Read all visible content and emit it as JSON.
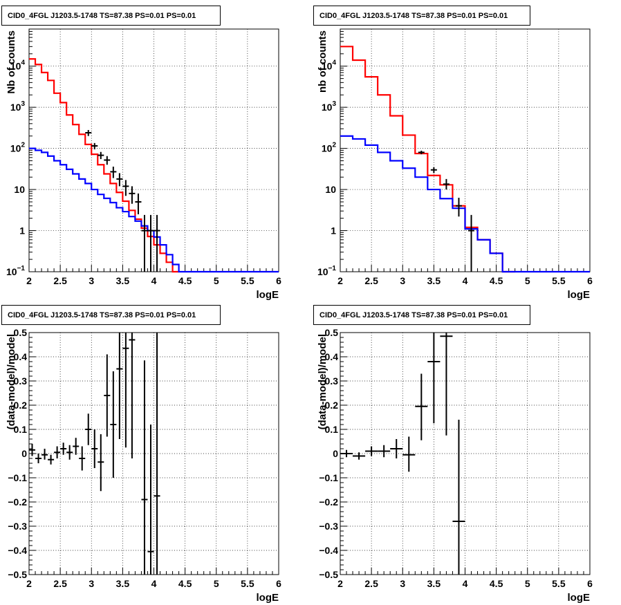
{
  "chart_data": [
    {
      "type": "line",
      "title": "CID0_4FGL J1203.5-1748 TS=87.38 PS=0.01 PS=0.01",
      "xlabel": "logE",
      "ylabel": "Nb of counts",
      "xlim": [
        2,
        6
      ],
      "ylim": [
        0.1,
        80000
      ],
      "yscale": "log",
      "grid": true,
      "x_ticks": [
        "2",
        "2.5",
        "3",
        "3.5",
        "4",
        "4.5",
        "5",
        "5.5",
        "6"
      ],
      "y_ticks": [
        {
          "value": 0.1,
          "base": "10",
          "exp": "−1"
        },
        {
          "value": 1,
          "label": "1"
        },
        {
          "value": 10,
          "label": "10"
        },
        {
          "value": 100,
          "base": "10",
          "exp": "2"
        },
        {
          "value": 1000,
          "base": "10",
          "exp": "3"
        },
        {
          "value": 10000,
          "base": "10",
          "exp": "4"
        }
      ],
      "series": [
        {
          "color": "#ff0000",
          "style": "step",
          "bin_width": 0.1,
          "x_edges_start": 2.0,
          "values": [
            15000,
            11000,
            7000,
            4500,
            2200,
            1300,
            650,
            380,
            220,
            125,
            72,
            40,
            24,
            14,
            8.5,
            5.2,
            3.1,
            1.9,
            1.15,
            0.72,
            0.45,
            0.28,
            0.17,
            0.1
          ]
        },
        {
          "color": "#0000ff",
          "style": "step",
          "bin_width": 0.1,
          "x_edges_start": 2.0,
          "values": [
            100,
            90,
            80,
            65,
            50,
            40,
            31,
            24,
            18,
            14,
            10,
            7.6,
            6.1,
            4.8,
            3.6,
            2.9,
            2.2,
            1.7,
            1.3,
            1.0,
            0.7,
            0.45,
            0.26,
            0.15,
            0.1,
            0.1,
            0.1,
            0.1,
            0.1,
            0.1,
            0.1,
            0.1,
            0.1,
            0.1,
            0.1,
            0.1,
            0.1,
            0.1,
            0.1,
            0.1
          ]
        }
      ],
      "points": [
        {
          "x": 2.95,
          "y": 240,
          "lo": 200,
          "hi": 280
        },
        {
          "x": 3.05,
          "y": 115,
          "lo": 95,
          "hi": 135
        },
        {
          "x": 3.15,
          "y": 68,
          "lo": 55,
          "hi": 82
        },
        {
          "x": 3.25,
          "y": 52,
          "lo": 40,
          "hi": 65
        },
        {
          "x": 3.35,
          "y": 27,
          "lo": 19,
          "hi": 36
        },
        {
          "x": 3.45,
          "y": 18,
          "lo": 12,
          "hi": 25
        },
        {
          "x": 3.55,
          "y": 12,
          "lo": 7,
          "hi": 17
        },
        {
          "x": 3.65,
          "y": 8,
          "lo": 4.5,
          "hi": 12
        },
        {
          "x": 3.75,
          "y": 5,
          "lo": 2.5,
          "hi": 8
        },
        {
          "x": 3.85,
          "y": 1,
          "lo": 0.1,
          "hi": 2.4
        },
        {
          "x": 3.95,
          "y": 1,
          "lo": 0.1,
          "hi": 2.4
        },
        {
          "x": 4.05,
          "y": 1,
          "lo": 0.1,
          "hi": 2.4
        }
      ]
    },
    {
      "type": "line",
      "title": "CID0_4FGL J1203.5-1748 TS=87.38 PS=0.01 PS=0.01",
      "xlabel": "logE",
      "ylabel": "nb of counts",
      "xlim": [
        2,
        6
      ],
      "ylim": [
        0.1,
        80000
      ],
      "yscale": "log",
      "grid": true,
      "x_ticks": [
        "2",
        "2.5",
        "3",
        "3.5",
        "4",
        "4.5",
        "5",
        "5.5",
        "6"
      ],
      "y_ticks": [
        {
          "value": 0.1,
          "base": "10",
          "exp": "−1"
        },
        {
          "value": 1,
          "label": "1"
        },
        {
          "value": 10,
          "label": "10"
        },
        {
          "value": 100,
          "base": "10",
          "exp": "2"
        },
        {
          "value": 1000,
          "base": "10",
          "exp": "3"
        },
        {
          "value": 10000,
          "base": "10",
          "exp": "4"
        }
      ],
      "series": [
        {
          "color": "#ff0000",
          "style": "step",
          "bin_width": 0.2,
          "x_edges_start": 2.0,
          "values": [
            30000,
            14000,
            5500,
            2000,
            620,
            210,
            75,
            22,
            13,
            4,
            1.2,
            0.6,
            0.28,
            0.1
          ]
        },
        {
          "color": "#0000ff",
          "style": "step",
          "bin_width": 0.2,
          "x_edges_start": 2.0,
          "values": [
            200,
            170,
            120,
            80,
            50,
            33,
            20,
            10,
            6,
            3.5,
            1.1,
            0.6,
            0.28,
            0.1,
            0.1,
            0.1,
            0.1,
            0.1,
            0.1,
            0.1
          ]
        }
      ],
      "points": [
        {
          "x": 3.3,
          "y": 80,
          "lo": 72,
          "hi": 88
        },
        {
          "x": 3.5,
          "y": 30,
          "lo": 25,
          "hi": 35
        },
        {
          "x": 3.7,
          "y": 13.5,
          "lo": 10,
          "hi": 18
        },
        {
          "x": 3.9,
          "y": 4,
          "lo": 2.2,
          "hi": 6.3
        },
        {
          "x": 4.1,
          "y": 1,
          "lo": 0.1,
          "hi": 2.4
        }
      ]
    },
    {
      "type": "scatter",
      "title": "CID0_4FGL J1203.5-1748 TS=87.38 PS=0.01 PS=0.01",
      "xlabel": "logE",
      "ylabel": "(data-model)/model",
      "xlim": [
        2,
        6
      ],
      "ylim": [
        -0.5,
        0.5
      ],
      "grid": true,
      "x_ticks": [
        "2",
        "2.5",
        "3",
        "3.5",
        "4",
        "4.5",
        "5",
        "5.5",
        "6"
      ],
      "y_ticks": [
        "−0.5",
        "−0.4",
        "−0.3",
        "−0.2",
        "−0.1",
        "0",
        "0.1",
        "0.2",
        "0.3",
        "0.4",
        "0.5"
      ],
      "xerr": 0.05,
      "points": [
        {
          "x": 2.05,
          "y": 0.015,
          "lo": -0.01,
          "hi": 0.04
        },
        {
          "x": 2.15,
          "y": -0.02,
          "lo": -0.04,
          "hi": 0.0
        },
        {
          "x": 2.25,
          "y": -0.005,
          "lo": -0.025,
          "hi": 0.02
        },
        {
          "x": 2.35,
          "y": -0.025,
          "lo": -0.045,
          "hi": -0.005
        },
        {
          "x": 2.45,
          "y": 0.005,
          "lo": -0.02,
          "hi": 0.03
        },
        {
          "x": 2.55,
          "y": 0.02,
          "lo": -0.005,
          "hi": 0.045
        },
        {
          "x": 2.65,
          "y": 0.005,
          "lo": -0.025,
          "hi": 0.035
        },
        {
          "x": 2.75,
          "y": 0.03,
          "lo": -0.005,
          "hi": 0.065
        },
        {
          "x": 2.85,
          "y": -0.02,
          "lo": -0.07,
          "hi": 0.03
        },
        {
          "x": 2.95,
          "y": 0.1,
          "lo": 0.035,
          "hi": 0.165
        },
        {
          "x": 3.05,
          "y": 0.02,
          "lo": -0.06,
          "hi": 0.1
        },
        {
          "x": 3.15,
          "y": -0.035,
          "lo": -0.155,
          "hi": 0.08
        },
        {
          "x": 3.25,
          "y": 0.24,
          "lo": 0.07,
          "hi": 0.41
        },
        {
          "x": 3.35,
          "y": 0.12,
          "lo": -0.1,
          "hi": 0.34
        },
        {
          "x": 3.45,
          "y": 0.35,
          "lo": 0.06,
          "hi": 0.5
        },
        {
          "x": 3.55,
          "y": 0.435,
          "lo": 0.025,
          "hi": 0.5
        },
        {
          "x": 3.65,
          "y": 0.47,
          "lo": -0.02,
          "hi": 0.5
        },
        {
          "x": 3.85,
          "y": -0.19,
          "lo": -0.5,
          "hi": 0.385
        },
        {
          "x": 3.95,
          "y": -0.405,
          "lo": -0.5,
          "hi": 0.12
        },
        {
          "x": 4.05,
          "y": -0.175,
          "lo": -0.5,
          "hi": 0.5
        }
      ]
    },
    {
      "type": "scatter",
      "title": "CID0_4FGL J1203.5-1748 TS=87.38 PS=0.01 PS=0.01",
      "xlabel": "logE",
      "ylabel": "(data-model)/model",
      "xlim": [
        2,
        6
      ],
      "ylim": [
        -0.5,
        0.5
      ],
      "grid": true,
      "x_ticks": [
        "2",
        "2.5",
        "3",
        "3.5",
        "4",
        "4.5",
        "5",
        "5.5",
        "6"
      ],
      "y_ticks": [
        "−0.5",
        "−0.4",
        "−0.3",
        "−0.2",
        "−0.1",
        "0",
        "0.1",
        "0.2",
        "0.3",
        "0.4",
        "0.5"
      ],
      "xerr": 0.1,
      "points": [
        {
          "x": 2.1,
          "y": 0.0,
          "lo": -0.015,
          "hi": 0.015
        },
        {
          "x": 2.3,
          "y": -0.01,
          "lo": -0.025,
          "hi": 0.005
        },
        {
          "x": 2.5,
          "y": 0.01,
          "lo": -0.01,
          "hi": 0.03
        },
        {
          "x": 2.7,
          "y": 0.01,
          "lo": -0.015,
          "hi": 0.035
        },
        {
          "x": 2.9,
          "y": 0.02,
          "lo": -0.02,
          "hi": 0.06
        },
        {
          "x": 3.1,
          "y": -0.005,
          "lo": -0.075,
          "hi": 0.07
        },
        {
          "x": 3.3,
          "y": 0.195,
          "lo": 0.055,
          "hi": 0.33
        },
        {
          "x": 3.5,
          "y": 0.38,
          "lo": 0.125,
          "hi": 0.5
        },
        {
          "x": 3.7,
          "y": 0.485,
          "lo": 0.075,
          "hi": 0.5
        },
        {
          "x": 3.9,
          "y": -0.28,
          "lo": -0.5,
          "hi": 0.14
        }
      ]
    }
  ]
}
